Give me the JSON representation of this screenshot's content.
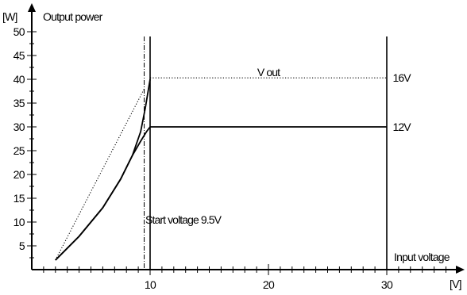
{
  "chart_data": {
    "type": "line",
    "title": "",
    "ylabel": "Output power",
    "yunit": "[W]",
    "xlabel": "Input voltage",
    "xunit": "[V]",
    "xlim": [
      0,
      36
    ],
    "ylim": [
      0,
      50
    ],
    "x_ticks": [
      {
        "value": 10,
        "label": "10"
      },
      {
        "value": 20,
        "label": "20"
      },
      {
        "value": 30,
        "label": "30"
      }
    ],
    "x_minor_step": 1,
    "y_ticks": [
      {
        "value": 5,
        "label": "5"
      },
      {
        "value": 10,
        "label": "10"
      },
      {
        "value": 15,
        "label": "15"
      },
      {
        "value": 20,
        "label": "20"
      },
      {
        "value": 25,
        "label": "25"
      },
      {
        "value": 30,
        "label": "30"
      },
      {
        "value": 35,
        "label": "35"
      },
      {
        "value": 40,
        "label": "40"
      },
      {
        "value": 45,
        "label": "45"
      },
      {
        "value": 50,
        "label": "50"
      }
    ],
    "y_minor_step": 2.5,
    "grid": false,
    "series": [
      {
        "name": "16V",
        "style": "solid",
        "points": [
          [
            2,
            2
          ],
          [
            4,
            7
          ],
          [
            6,
            13
          ],
          [
            7.5,
            19
          ],
          [
            8.5,
            24
          ],
          [
            9.2,
            29
          ],
          [
            9.6,
            34
          ],
          [
            10,
            40
          ]
        ]
      },
      {
        "name": "16V",
        "style": "dotted",
        "points": [
          [
            10,
            40.3
          ],
          [
            30,
            40.3
          ]
        ]
      },
      {
        "name": "12V",
        "style": "solid",
        "points": [
          [
            2,
            2
          ],
          [
            4,
            7
          ],
          [
            6,
            13
          ],
          [
            7.5,
            19
          ],
          [
            8.5,
            24
          ],
          [
            9.2,
            27
          ],
          [
            9.7,
            29
          ],
          [
            10,
            30
          ],
          [
            30,
            30
          ]
        ]
      },
      {
        "name": "",
        "style": "dotted",
        "points": [
          [
            2,
            2
          ],
          [
            9.5,
            38
          ]
        ]
      }
    ],
    "vertical_lines": [
      {
        "x": 9.5,
        "style": "dashdot"
      },
      {
        "x": 10,
        "style": "solid"
      },
      {
        "x": 30,
        "style": "solid"
      }
    ],
    "annotations": [
      {
        "text": "V out",
        "x": 20,
        "y": 41.5
      },
      {
        "text": "16V",
        "x": 30.5,
        "y": 40.3
      },
      {
        "text": "12V",
        "x": 30.5,
        "y": 30
      },
      {
        "text": "Start voltage 9.5V",
        "x": 9.6,
        "y": 10.5
      }
    ],
    "colors": {
      "line": "#000000",
      "background": "#ffffff"
    }
  }
}
